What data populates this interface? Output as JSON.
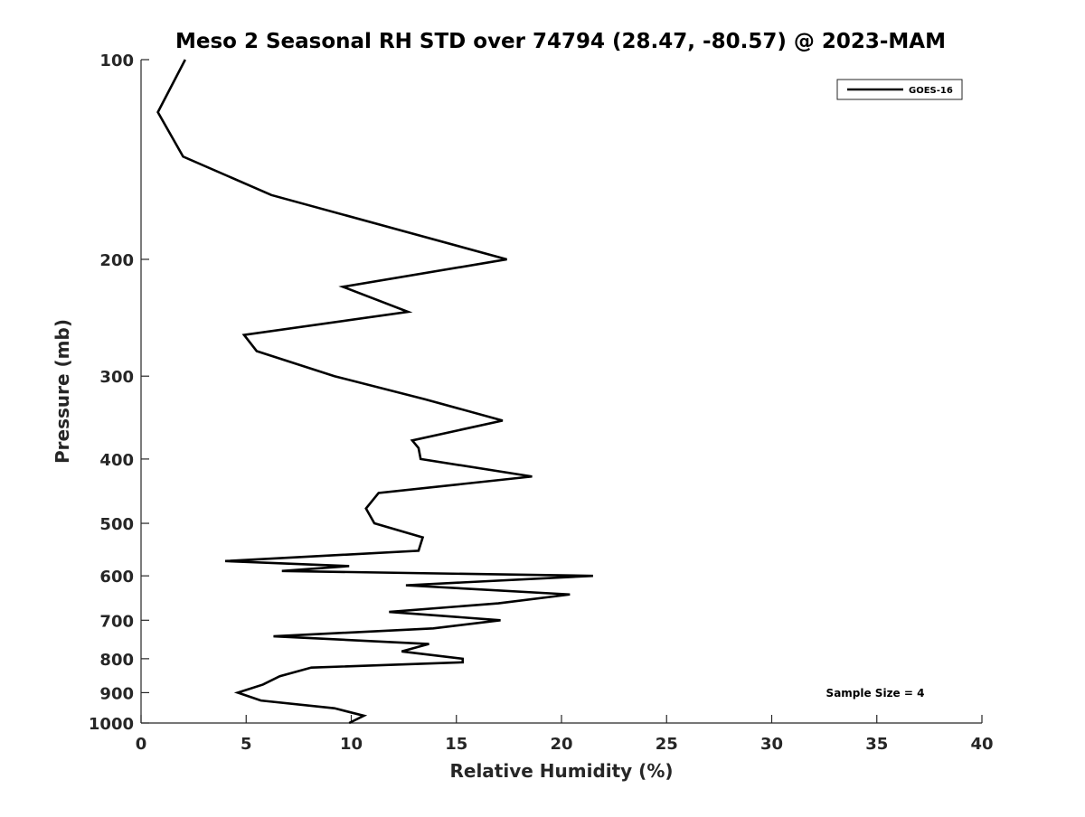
{
  "chart_data": {
    "type": "line",
    "title": "Meso 2 Seasonal RH STD over 74794 (28.47, -80.57) @ 2023-MAM",
    "xlabel": "Relative Humidity (%)",
    "ylabel": "Pressure (mb)",
    "xlim": [
      0,
      40
    ],
    "ylim": [
      100,
      1000
    ],
    "yscale": "log",
    "reverse_y": true,
    "xticks": [
      0,
      5,
      10,
      15,
      20,
      25,
      30,
      35,
      40
    ],
    "yticks": [
      100,
      200,
      300,
      400,
      500,
      600,
      700,
      800,
      900,
      1000
    ],
    "grid": false,
    "legend_position": "top-right",
    "annotation": "Sample Size = 4",
    "series": [
      {
        "name": "GOES-16",
        "color": "#000000",
        "points": [
          [
            2.1,
            100
          ],
          [
            0.8,
            120
          ],
          [
            2.0,
            140
          ],
          [
            6.2,
            160
          ],
          [
            17.4,
            200
          ],
          [
            9.6,
            220
          ],
          [
            12.7,
            240
          ],
          [
            4.9,
            260
          ],
          [
            5.5,
            275
          ],
          [
            9.2,
            300
          ],
          [
            13.5,
            325
          ],
          [
            17.2,
            350
          ],
          [
            12.9,
            375
          ],
          [
            13.2,
            385
          ],
          [
            13.3,
            400
          ],
          [
            18.6,
            425
          ],
          [
            11.3,
            450
          ],
          [
            10.7,
            475
          ],
          [
            11.1,
            500
          ],
          [
            13.4,
            525
          ],
          [
            13.2,
            550
          ],
          [
            4.0,
            570
          ],
          [
            9.9,
            580
          ],
          [
            6.7,
            590
          ],
          [
            21.5,
            600
          ],
          [
            12.6,
            620
          ],
          [
            20.4,
            640
          ],
          [
            17.0,
            660
          ],
          [
            11.8,
            680
          ],
          [
            17.1,
            700
          ],
          [
            13.9,
            720
          ],
          [
            6.3,
            740
          ],
          [
            13.7,
            760
          ],
          [
            12.4,
            780
          ],
          [
            15.3,
            800
          ],
          [
            15.3,
            810
          ],
          [
            8.1,
            825
          ],
          [
            6.6,
            850
          ],
          [
            5.8,
            875
          ],
          [
            4.6,
            900
          ],
          [
            5.7,
            925
          ],
          [
            9.2,
            950
          ],
          [
            10.6,
            975
          ],
          [
            9.9,
            1000
          ]
        ]
      }
    ]
  }
}
